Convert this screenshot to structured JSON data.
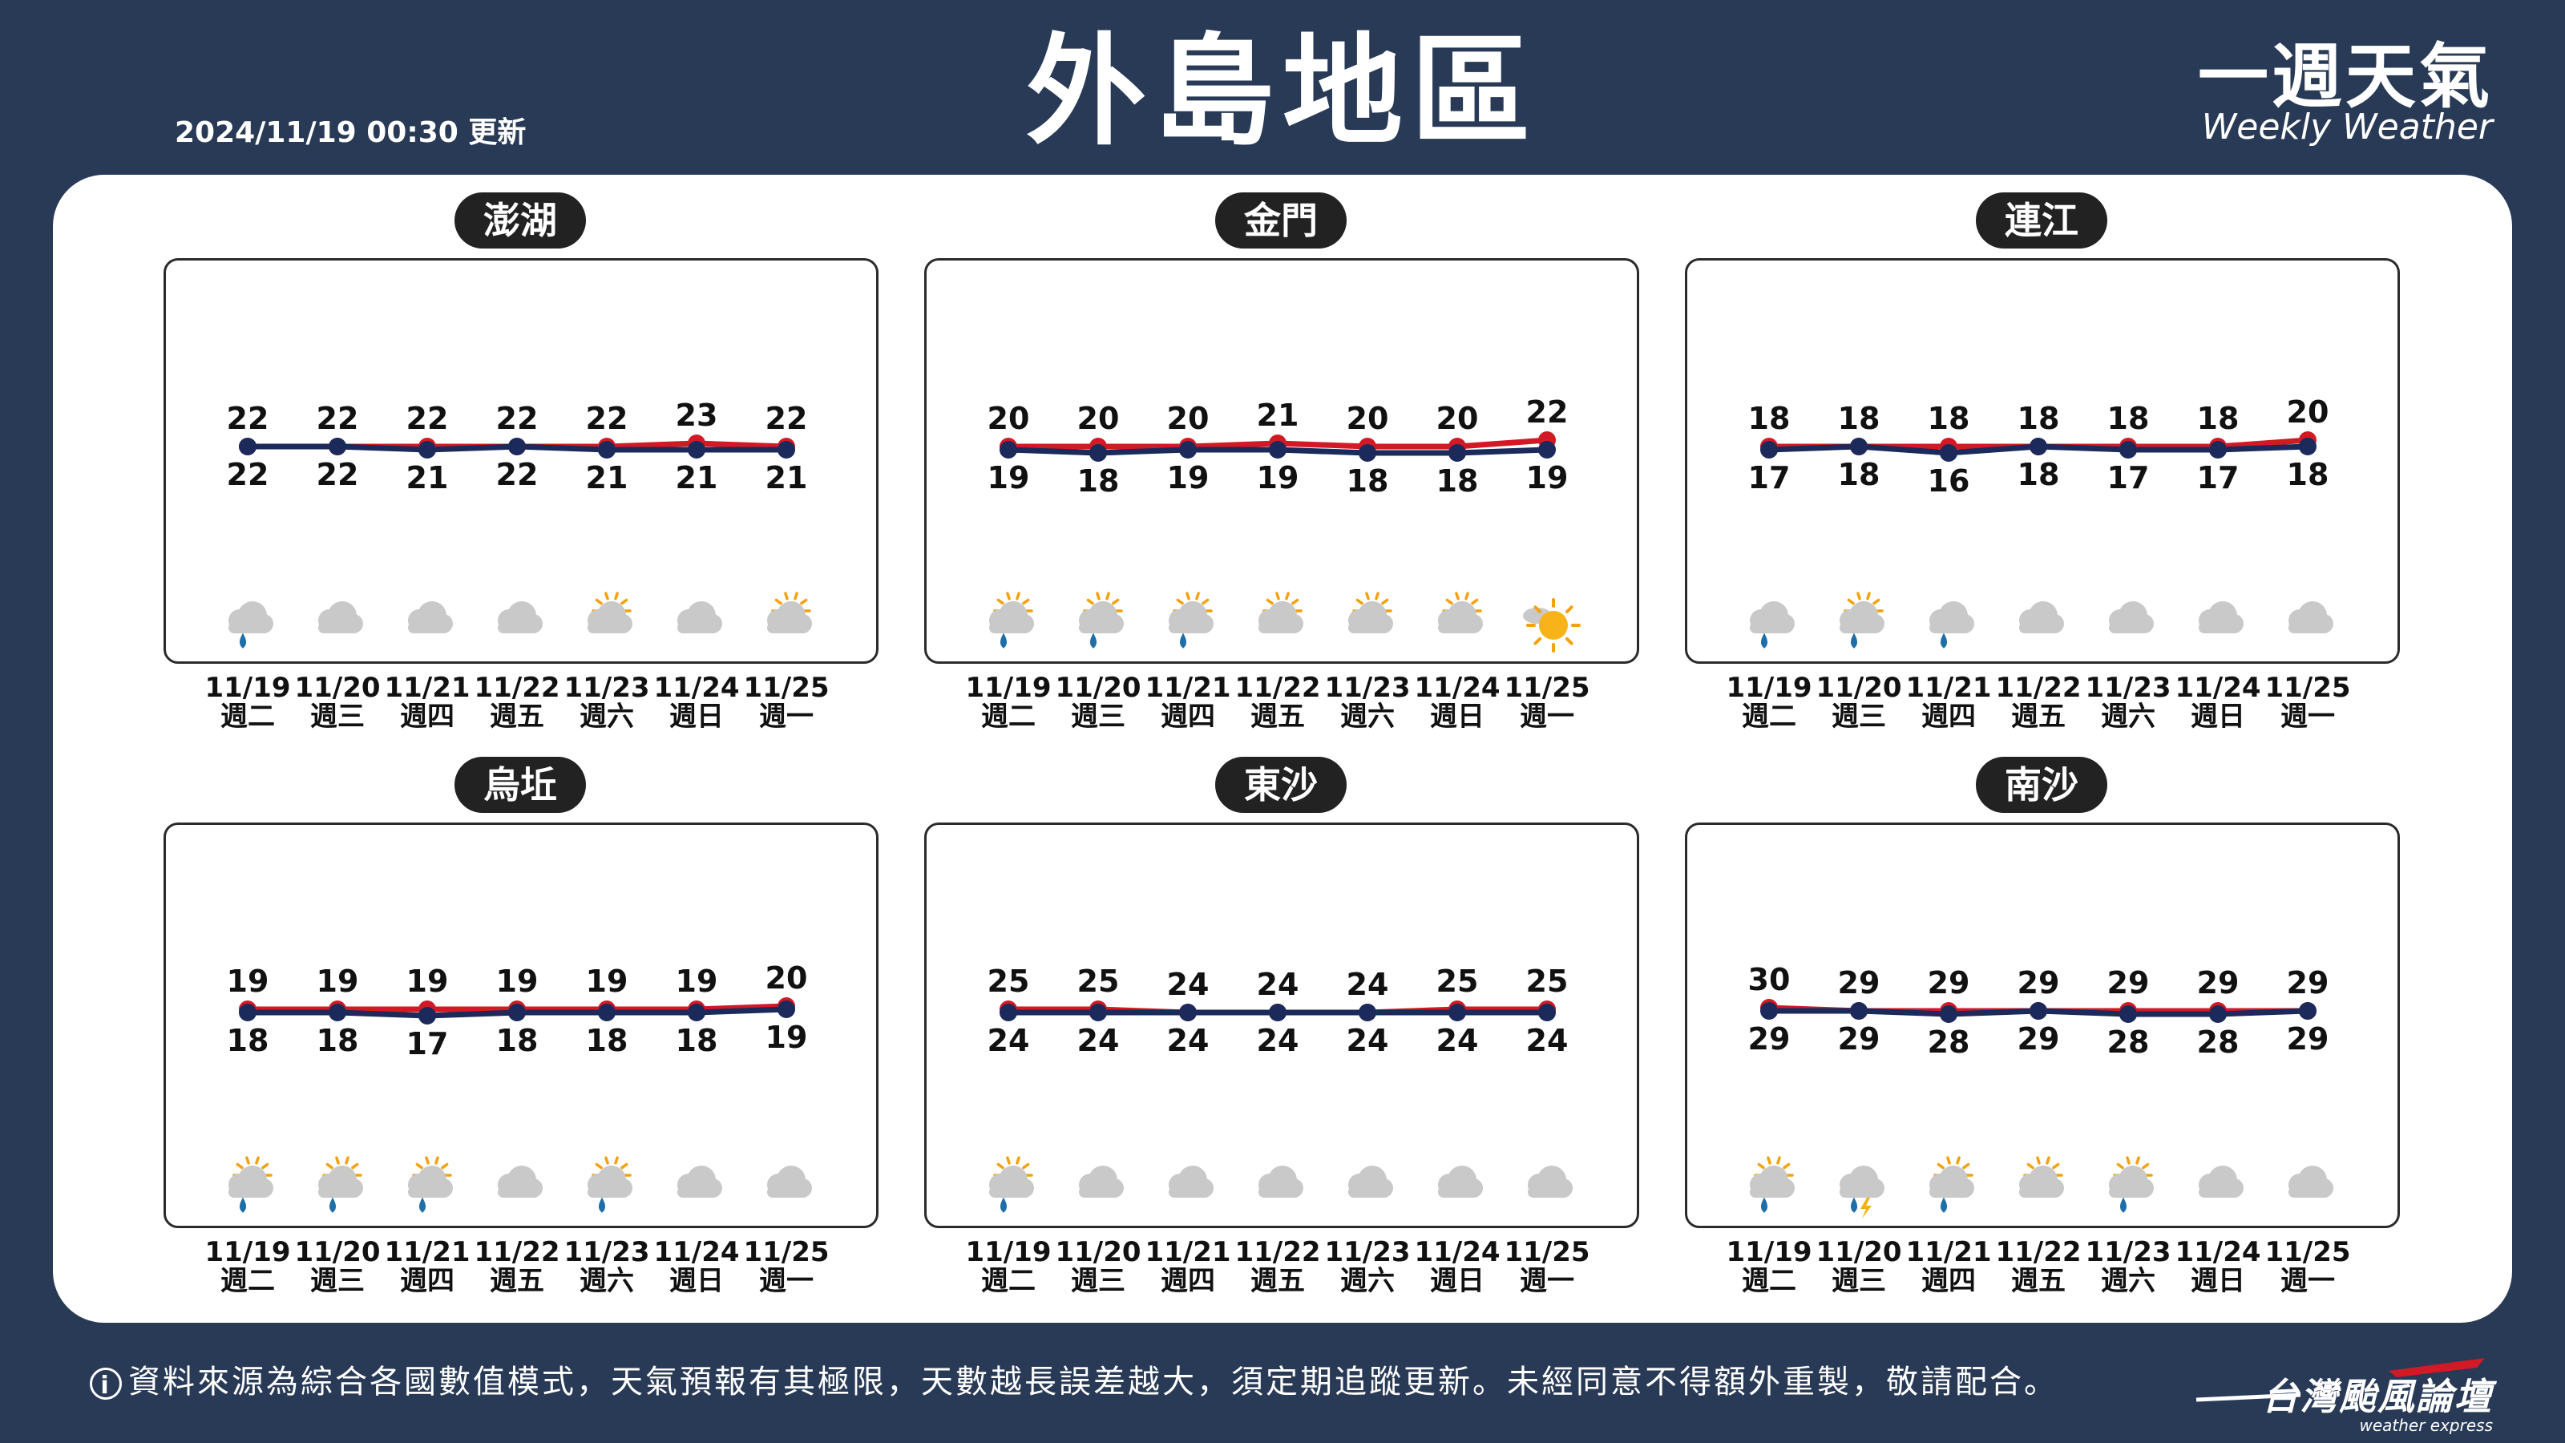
{
  "header": {
    "updated": "2024/11/19 00:30 更新",
    "title": "外島地區",
    "brand_zh": "一週天氣",
    "brand_en": "Weekly Weather"
  },
  "colors": {
    "high": "#d11a25",
    "low": "#1b2a5a",
    "background": "#283a56"
  },
  "days": [
    {
      "date": "11/19",
      "weekday": "週二"
    },
    {
      "date": "11/20",
      "weekday": "週三"
    },
    {
      "date": "11/21",
      "weekday": "週四"
    },
    {
      "date": "11/22",
      "weekday": "週五"
    },
    {
      "date": "11/23",
      "weekday": "週六"
    },
    {
      "date": "11/24",
      "weekday": "週日"
    },
    {
      "date": "11/25",
      "weekday": "週一"
    }
  ],
  "regions": [
    {
      "name": "澎湖",
      "high": [
        22,
        22,
        22,
        22,
        22,
        23,
        22
      ],
      "low": [
        22,
        22,
        21,
        22,
        21,
        21,
        21
      ],
      "icons": [
        "cloud-rain",
        "cloudy",
        "cloudy",
        "cloudy",
        "partly-sunny",
        "cloudy",
        "partly-sunny"
      ]
    },
    {
      "name": "金門",
      "high": [
        20,
        20,
        20,
        21,
        20,
        20,
        22
      ],
      "low": [
        19,
        18,
        19,
        19,
        18,
        18,
        19
      ],
      "icons": [
        "sun-cloud-rain",
        "sun-cloud-rain",
        "sun-cloud-rain",
        "partly-sunny",
        "partly-sunny",
        "partly-sunny",
        "sunny"
      ]
    },
    {
      "name": "連江",
      "high": [
        18,
        18,
        18,
        18,
        18,
        18,
        20
      ],
      "low": [
        17,
        18,
        16,
        18,
        17,
        17,
        18
      ],
      "icons": [
        "cloud-rain",
        "sun-cloud-rain",
        "cloud-rain",
        "cloudy",
        "cloudy",
        "cloudy",
        "cloudy"
      ]
    },
    {
      "name": "烏坵",
      "high": [
        19,
        19,
        19,
        19,
        19,
        19,
        20
      ],
      "low": [
        18,
        18,
        17,
        18,
        18,
        18,
        19
      ],
      "icons": [
        "sun-cloud-rain",
        "sun-cloud-rain",
        "sun-cloud-rain",
        "cloudy",
        "sun-cloud-rain",
        "cloudy",
        "cloudy"
      ]
    },
    {
      "name": "東沙",
      "high": [
        25,
        25,
        24,
        24,
        24,
        25,
        25
      ],
      "low": [
        24,
        24,
        24,
        24,
        24,
        24,
        24
      ],
      "icons": [
        "sun-cloud-rain",
        "cloudy",
        "cloudy",
        "cloudy",
        "cloudy",
        "cloudy",
        "cloudy"
      ]
    },
    {
      "name": "南沙",
      "high": [
        30,
        29,
        29,
        29,
        29,
        29,
        29
      ],
      "low": [
        29,
        29,
        28,
        29,
        28,
        28,
        29
      ],
      "icons": [
        "sun-cloud-rain",
        "cloud-thunder-rain",
        "sun-cloud-rain",
        "partly-sunny",
        "sun-cloud-rain",
        "cloudy",
        "cloudy"
      ]
    }
  ],
  "footer": {
    "info_icon": "i",
    "disclaimer": "資料來源為綜合各國數值模式，天氣預報有其極限，天數越長誤差越大，須定期追蹤更新。未經同意不得額外重製，敬請配合。",
    "logo_text": "台灣颱風論壇",
    "logo_sub": "weather express"
  }
}
